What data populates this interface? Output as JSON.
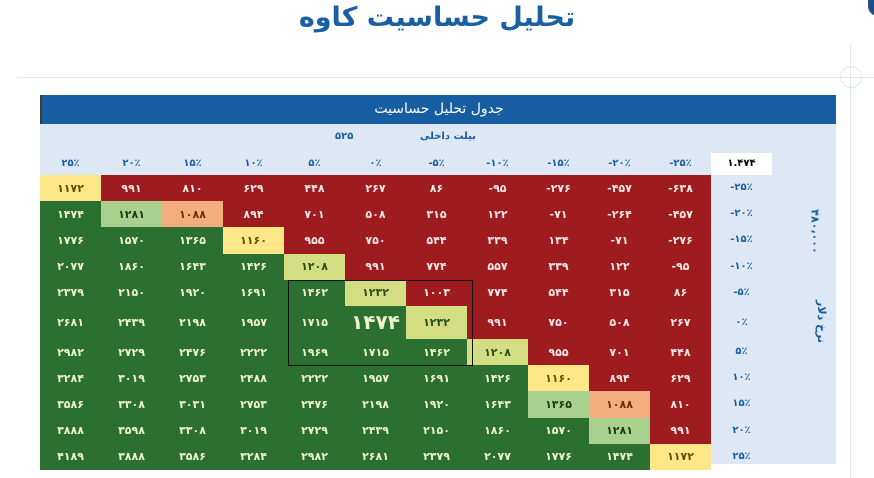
{
  "page": {
    "title": "تحلیل حساسیت کاوه"
  },
  "table": {
    "header": "جدول تحلیل حساسیت",
    "column_group_label": "بیلت داخلی",
    "column_base_value": "۵۲۵",
    "corner_value": "۱.۴۷۴",
    "row_group_label": "نرخ دلار",
    "row_base_value": "۴۸۰،۰۰۰",
    "columns": [
      "۲۵٪",
      "۲۰٪",
      "۱۵٪",
      "۱۰٪",
      "۵٪",
      "۰٪",
      "-۵٪",
      "-۱۰٪",
      "-۱۵٪",
      "-۲۰٪",
      "-۲۵٪"
    ],
    "row_labels": [
      "-۲۵٪",
      "-۲۰٪",
      "-۱۵٪",
      "-۱۰٪",
      "-۵٪",
      "۰٪",
      "۵٪",
      "۱۰٪",
      "۱۵٪",
      "۲۰٪",
      "۲۵٪"
    ],
    "rows": [
      [
        "۱۱۷۲",
        "۹۹۱",
        "۸۱۰",
        "۶۲۹",
        "۴۴۸",
        "۲۶۷",
        "۸۶",
        "-۹۵",
        "-۲۷۶",
        "-۴۵۷",
        "-۶۳۸"
      ],
      [
        "۱۴۷۴",
        "۱۲۸۱",
        "۱۰۸۸",
        "۸۹۴",
        "۷۰۱",
        "۵۰۸",
        "۳۱۵",
        "۱۲۲",
        "-۷۱",
        "-۲۶۴",
        "-۴۵۷"
      ],
      [
        "۱۷۷۶",
        "۱۵۷۰",
        "۱۳۶۵",
        "۱۱۶۰",
        "۹۵۵",
        "۷۵۰",
        "۵۴۴",
        "۳۳۹",
        "۱۳۴",
        "-۷۱",
        "-۲۷۶"
      ],
      [
        "۲۰۷۷",
        "۱۸۶۰",
        "۱۶۴۳",
        "۱۴۲۶",
        "۱۲۰۸",
        "۹۹۱",
        "۷۷۴",
        "۵۵۷",
        "۳۳۹",
        "۱۲۲",
        "-۹۵"
      ],
      [
        "۲۳۷۹",
        "۲۱۵۰",
        "۱۹۲۰",
        "۱۶۹۱",
        "۱۴۶۲",
        "۱۲۳۲",
        "۱۰۰۳",
        "۷۷۴",
        "۵۴۴",
        "۳۱۵",
        "۸۶"
      ],
      [
        "۲۶۸۱",
        "۲۴۳۹",
        "۲۱۹۸",
        "۱۹۵۷",
        "۱۷۱۵",
        "۱۴۷۴",
        "۱۲۳۲",
        "۹۹۱",
        "۷۵۰",
        "۵۰۸",
        "۲۶۷"
      ],
      [
        "۲۹۸۲",
        "۲۷۲۹",
        "۲۴۷۶",
        "۲۲۲۲",
        "۱۹۶۹",
        "۱۷۱۵",
        "۱۴۶۲",
        "۱۲۰۸",
        "۹۵۵",
        "۷۰۱",
        "۴۴۸"
      ],
      [
        "۳۲۸۴",
        "۳۰۱۹",
        "۲۷۵۳",
        "۲۴۸۸",
        "۲۲۲۲",
        "۱۹۵۷",
        "۱۶۹۱",
        "۱۴۲۶",
        "۱۱۶۰",
        "۸۹۴",
        "۶۲۹"
      ],
      [
        "۳۵۸۶",
        "۳۳۰۸",
        "۳۰۳۱",
        "۲۷۵۳",
        "۲۴۷۶",
        "۲۱۹۸",
        "۱۹۲۰",
        "۱۶۴۳",
        "۱۳۶۵",
        "۱۰۸۸",
        "۸۱۰"
      ],
      [
        "۳۸۸۸",
        "۳۵۹۸",
        "۳۳۰۸",
        "۳۰۱۹",
        "۲۷۲۹",
        "۲۴۳۹",
        "۲۱۵۰",
        "۱۸۶۰",
        "۱۵۷۰",
        "۱۲۸۱",
        "۹۹۱"
      ],
      [
        "۴۱۸۹",
        "۳۸۸۸",
        "۳۵۸۶",
        "۳۲۸۴",
        "۲۹۸۲",
        "۲۶۸۱",
        "۲۳۷۹",
        "۲۰۷۷",
        "۱۷۷۶",
        "۱۴۷۴",
        "۱۱۷۲"
      ]
    ],
    "cell_colors": [
      [
        "yellow",
        "red",
        "red",
        "red",
        "red",
        "red",
        "red",
        "red",
        "red",
        "red",
        "red"
      ],
      [
        "green",
        "mgreen",
        "orange",
        "red",
        "red",
        "red",
        "red",
        "red",
        "red",
        "red",
        "red"
      ],
      [
        "green",
        "green",
        "green",
        "yellow",
        "red",
        "red",
        "red",
        "red",
        "red",
        "red",
        "red"
      ],
      [
        "green",
        "green",
        "green",
        "green",
        "lgreen",
        "red",
        "red",
        "red",
        "red",
        "red",
        "red"
      ],
      [
        "green",
        "green",
        "green",
        "green",
        "green",
        "lgreen",
        "red",
        "red",
        "red",
        "red",
        "red"
      ],
      [
        "green",
        "green",
        "green",
        "green",
        "green",
        "green",
        "lgreen",
        "red",
        "red",
        "red",
        "red"
      ],
      [
        "green",
        "green",
        "green",
        "green",
        "green",
        "green",
        "green",
        "lgreen",
        "red",
        "red",
        "red"
      ],
      [
        "green",
        "green",
        "green",
        "green",
        "green",
        "green",
        "green",
        "green",
        "yellow",
        "red",
        "red"
      ],
      [
        "green",
        "green",
        "green",
        "green",
        "green",
        "green",
        "green",
        "green",
        "mgreen",
        "orange",
        "red"
      ],
      [
        "green",
        "green",
        "green",
        "green",
        "green",
        "green",
        "green",
        "green",
        "green",
        "mgreen",
        "red"
      ],
      [
        "green",
        "green",
        "green",
        "green",
        "green",
        "green",
        "green",
        "green",
        "green",
        "green",
        "yellow"
      ]
    ]
  },
  "colors": {
    "header_blue": "#165ea1",
    "band_light_blue": "#dde8f4",
    "title_blue": "#1a5ea3",
    "red": "#9e1c1f",
    "green": "#2b6f31",
    "light_green": "#d3de82",
    "mid_green": "#a9d18e",
    "yellow": "#fde789",
    "orange": "#f3ad7f"
  }
}
